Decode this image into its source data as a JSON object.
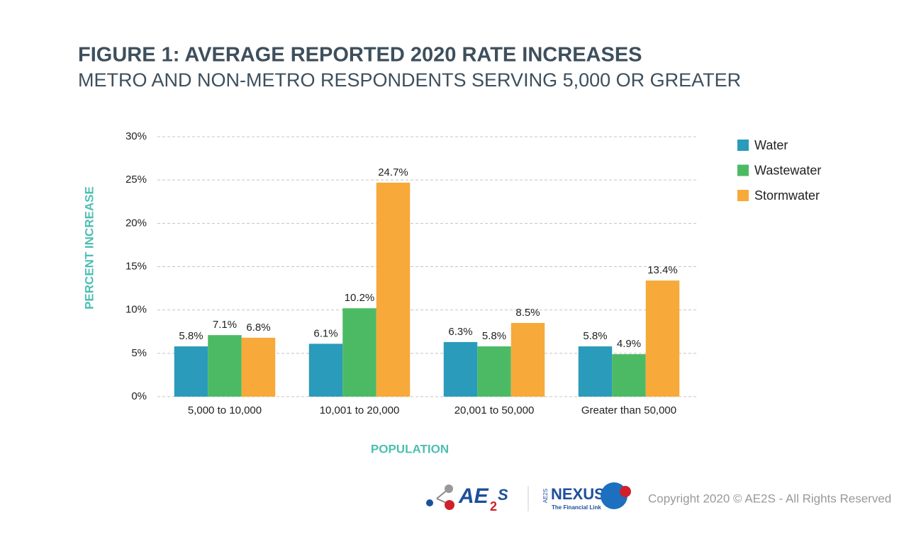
{
  "chart_data": {
    "type": "bar",
    "title": "FIGURE 1: AVERAGE REPORTED 2020 RATE INCREASES",
    "subtitle": "METRO AND NON-METRO RESPONDENTS SERVING 5,000 OR GREATER",
    "y_label": "PERCENT INCREASE",
    "x_label": "POPULATION",
    "categories": [
      "5,000 to 10,000",
      "10,001 to 20,000",
      "20,001 to 50,000",
      "Greater than 50,000"
    ],
    "series": [
      {
        "name": "Water",
        "color": "#2a9bba",
        "values": [
          5.8,
          6.1,
          6.3,
          5.8
        ],
        "value_labels": [
          "5.8%",
          "6.1%",
          "6.3%",
          "5.8%"
        ]
      },
      {
        "name": "Wastewater",
        "color": "#4cba65",
        "values": [
          7.1,
          10.2,
          5.8,
          4.9
        ],
        "value_labels": [
          "7.1%",
          "10.2%",
          "5.8%",
          "4.9%"
        ]
      },
      {
        "name": "Stormwater",
        "color": "#f7a93a",
        "values": [
          6.8,
          24.7,
          8.5,
          13.4
        ],
        "value_labels": [
          "6.8%",
          "24.7%",
          "8.5%",
          "13.4%"
        ]
      }
    ],
    "ylim": [
      0,
      30
    ],
    "yticks": [
      {
        "value": 0,
        "label": "0%"
      },
      {
        "value": 5,
        "label": "5%"
      },
      {
        "value": 10,
        "label": "10%"
      },
      {
        "value": 15,
        "label": "15%"
      },
      {
        "value": 20,
        "label": "20%"
      },
      {
        "value": 25,
        "label": "25%"
      },
      {
        "value": 30,
        "label": "30%"
      }
    ],
    "grid": true,
    "legend": "right"
  },
  "footer": {
    "logo_ae": "AE",
    "logo_2": "2",
    "logo_s": "S",
    "nexus_small": "AE2S",
    "nexus": "NEXUS",
    "nexus_tagline": "The Financial Link",
    "copyright": "Copyright 2020 © AE2S - All Rights Reserved"
  }
}
